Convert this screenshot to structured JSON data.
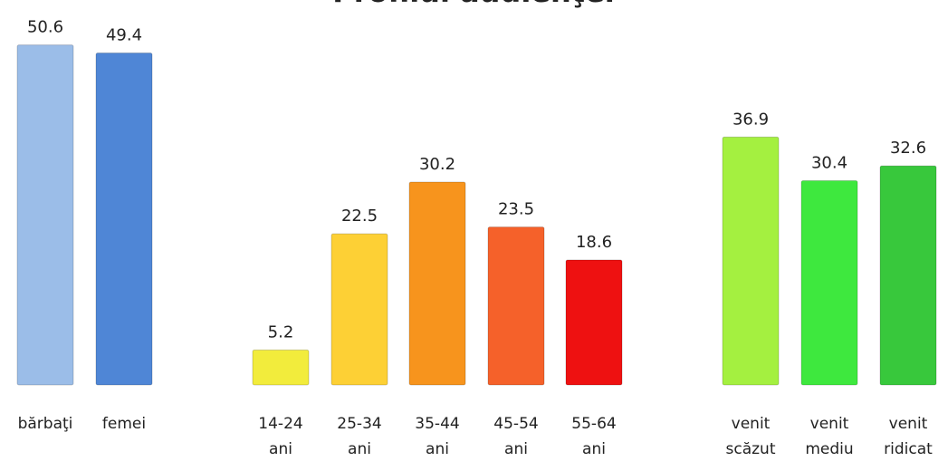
{
  "chart_data": {
    "type": "bar",
    "title": "Profilul audienţei",
    "categories": [
      "bărbaţi",
      "femei",
      "14-24 ani",
      "25-34 ani",
      "35-44 ani",
      "45-54 ani",
      "55-64 ani",
      "venit scăzut",
      "venit mediu",
      "venit ridicat"
    ],
    "values": [
      50.6,
      49.4,
      5.2,
      22.5,
      30.2,
      23.5,
      18.6,
      36.9,
      30.4,
      32.6
    ],
    "colors": [
      "#9bbde8",
      "#4f86d6",
      "#f2ec3c",
      "#fdd035",
      "#f7941d",
      "#f5612a",
      "#ee1111",
      "#a4f040",
      "#3ee83e",
      "#38c83c"
    ],
    "ylim": [
      0,
      55
    ]
  }
}
